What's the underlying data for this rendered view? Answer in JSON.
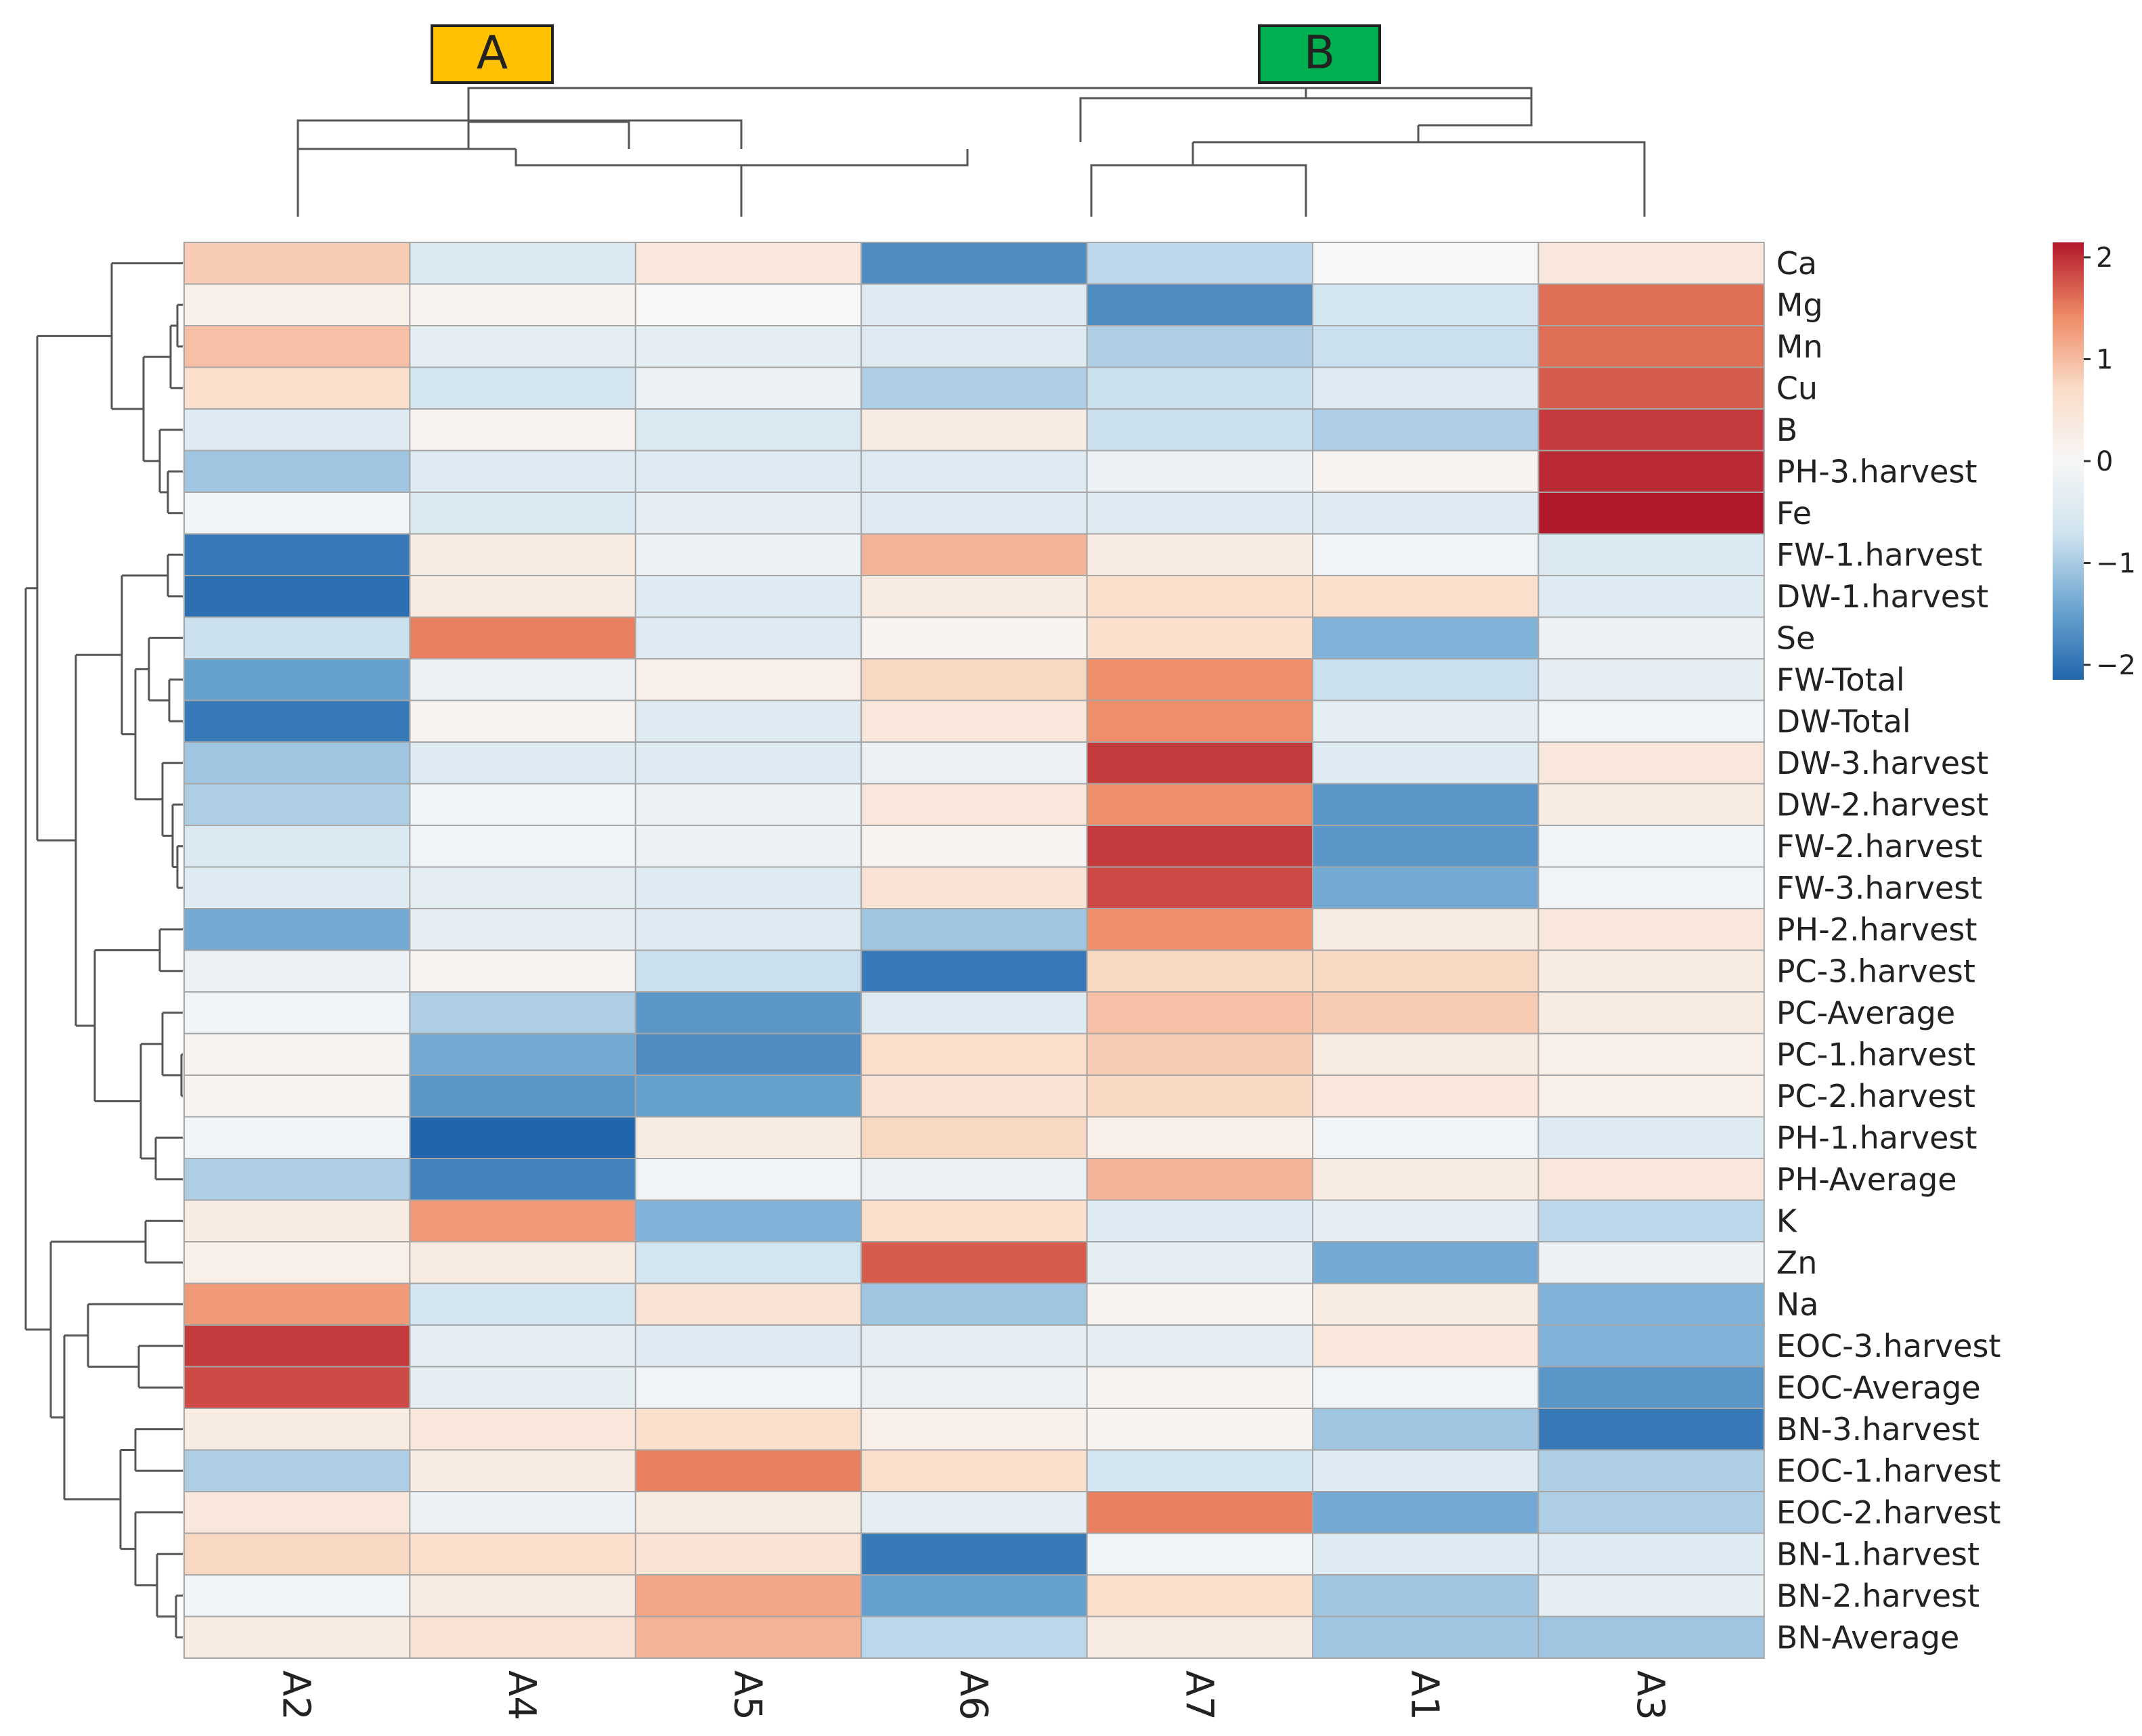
{
  "chart_data": {
    "type": "heatmap",
    "columns": [
      "A2",
      "A4",
      "A5",
      "A6",
      "A7",
      "A1",
      "A3"
    ],
    "rows": [
      "Ca",
      "Mg",
      "Mn",
      "Cu",
      "B",
      "PH-3.harvest",
      "Fe",
      "FW-1.harvest",
      "DW-1.harvest",
      "Se",
      "FW-Total",
      "DW-Total",
      "DW-3.harvest",
      "DW-2.harvest",
      "FW-2.harvest",
      "FW-3.harvest",
      "PH-2.harvest",
      "PC-3.harvest",
      "PC-Average",
      "PC-1.harvest",
      "PC-2.harvest",
      "PH-1.harvest",
      "PH-Average",
      "K",
      "Zn",
      "Na",
      "EOC-3.harvest",
      "EOC-Average",
      "BN-3.harvest",
      "EOC-1.harvest",
      "EOC-2.harvest",
      "BN-1.harvest",
      "BN-2.harvest",
      "BN-Average"
    ],
    "values": [
      [
        0.8,
        -0.5,
        0.4,
        -1.6,
        -0.8,
        0.0,
        0.4
      ],
      [
        0.2,
        0.1,
        0.0,
        -0.4,
        -1.6,
        -0.6,
        1.5
      ],
      [
        0.9,
        -0.3,
        -0.3,
        -0.4,
        -0.9,
        -0.7,
        1.5
      ],
      [
        0.6,
        -0.6,
        -0.2,
        -0.9,
        -0.7,
        -0.4,
        1.6
      ],
      [
        -0.4,
        0.1,
        -0.5,
        0.3,
        -0.7,
        -0.9,
        1.8
      ],
      [
        -1.0,
        -0.4,
        -0.4,
        -0.4,
        -0.2,
        0.1,
        1.9
      ],
      [
        -0.1,
        -0.5,
        -0.3,
        -0.4,
        -0.4,
        -0.4,
        2.1
      ],
      [
        -1.8,
        0.3,
        -0.2,
        1.0,
        0.3,
        -0.1,
        -0.5
      ],
      [
        -1.9,
        0.3,
        -0.4,
        0.3,
        0.6,
        0.6,
        -0.4
      ],
      [
        -0.7,
        1.4,
        -0.4,
        0.1,
        0.6,
        -1.2,
        -0.2
      ],
      [
        -1.4,
        -0.2,
        0.2,
        0.7,
        1.3,
        -0.7,
        -0.3
      ],
      [
        -1.8,
        0.1,
        -0.4,
        0.4,
        1.3,
        -0.3,
        -0.1
      ],
      [
        -1.0,
        -0.4,
        -0.4,
        -0.2,
        1.8,
        -0.4,
        0.4
      ],
      [
        -0.9,
        -0.1,
        -0.2,
        0.4,
        1.3,
        -1.5,
        0.3
      ],
      [
        -0.5,
        -0.1,
        -0.2,
        0.1,
        1.8,
        -1.5,
        -0.1
      ],
      [
        -0.4,
        -0.3,
        -0.4,
        0.5,
        1.7,
        -1.3,
        -0.1
      ],
      [
        -1.3,
        -0.3,
        -0.4,
        -1.0,
        1.3,
        0.3,
        0.4
      ],
      [
        -0.2,
        0.1,
        -0.7,
        -1.8,
        0.7,
        0.7,
        0.3
      ],
      [
        -0.1,
        -0.9,
        -1.5,
        -0.4,
        0.9,
        0.8,
        0.3
      ],
      [
        0.1,
        -1.3,
        -1.6,
        0.6,
        0.8,
        0.3,
        0.2
      ],
      [
        0.1,
        -1.5,
        -1.4,
        0.5,
        0.7,
        0.4,
        0.2
      ],
      [
        -0.1,
        -2.0,
        0.3,
        0.7,
        0.2,
        -0.1,
        -0.4
      ],
      [
        -0.9,
        -1.7,
        -0.1,
        -0.2,
        1.0,
        0.3,
        0.4
      ],
      [
        0.3,
        1.2,
        -1.2,
        0.6,
        -0.4,
        -0.3,
        -0.8
      ],
      [
        0.2,
        0.3,
        -0.6,
        1.6,
        -0.3,
        -1.3,
        -0.2
      ],
      [
        1.2,
        -0.6,
        0.5,
        -1.0,
        0.1,
        0.3,
        -1.2
      ],
      [
        1.8,
        -0.3,
        -0.4,
        -0.3,
        -0.3,
        0.4,
        -1.2
      ],
      [
        1.7,
        -0.3,
        -0.1,
        -0.2,
        0.1,
        -0.1,
        -1.5
      ],
      [
        0.3,
        0.4,
        0.6,
        0.2,
        0.1,
        -1.0,
        -1.8
      ],
      [
        -0.9,
        0.3,
        1.4,
        0.6,
        -0.6,
        -0.4,
        -0.9
      ],
      [
        0.4,
        -0.2,
        0.3,
        -0.3,
        1.4,
        -1.3,
        -0.9
      ],
      [
        0.7,
        0.6,
        0.5,
        -1.8,
        -0.1,
        -0.4,
        -0.4
      ],
      [
        -0.1,
        0.3,
        1.1,
        -1.4,
        0.6,
        -1.0,
        -0.3
      ],
      [
        0.3,
        0.5,
        1.0,
        -0.8,
        0.3,
        -1.0,
        -1.0
      ]
    ],
    "color_scale": {
      "min": -2,
      "max": 2,
      "ticks": [
        "2",
        "1",
        "0",
        "−1",
        "−2"
      ],
      "colors": [
        "#2166ac",
        "#6ea6d1",
        "#cfe3ef",
        "#f7f7f7",
        "#fadcc8",
        "#ee8a66",
        "#b2182b"
      ]
    },
    "cluster_labels": [
      {
        "text": "A",
        "color": "#ffc000"
      },
      {
        "text": "B",
        "color": "#00b050"
      }
    ],
    "legend_position": "top-right",
    "grid": true
  }
}
